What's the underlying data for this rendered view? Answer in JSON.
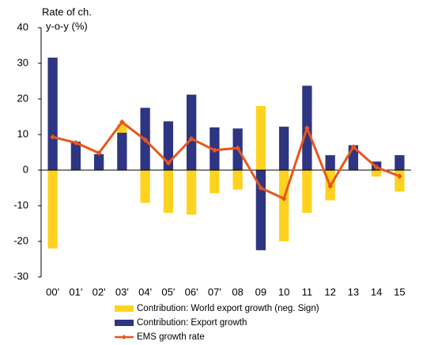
{
  "chart_data": {
    "type": "bar",
    "y_label_lines": [
      "Rate of ch.",
      "y-o-y (%)"
    ],
    "categories": [
      "00'",
      "01'",
      "02'",
      "03'",
      "04'",
      "05'",
      "06'",
      "07'",
      "08",
      "09",
      "10",
      "11",
      "12",
      "13",
      "14",
      "15"
    ],
    "series": [
      {
        "name": "Contribution: World export growth (neg. Sign)",
        "color": "#ffd21f",
        "kind": "bar",
        "values": [
          -22,
          0.5,
          0,
          13,
          -9.2,
          -12,
          -12.5,
          -6.5,
          -5.5,
          18,
          -20,
          -12,
          -8.5,
          6,
          -1.8,
          -6
        ]
      },
      {
        "name": "Contribution: Export growth",
        "color": "#2e3582",
        "kind": "bar",
        "values": [
          31.6,
          8,
          4.5,
          10.5,
          17.5,
          13.7,
          21.2,
          12,
          11.7,
          -22.5,
          12.2,
          23.7,
          4.2,
          7,
          2.4,
          4.2
        ]
      },
      {
        "name": "EMS growth rate",
        "color": "#e8561c",
        "kind": "line",
        "values": [
          9.3,
          7.7,
          4.8,
          13.5,
          8.5,
          2,
          8.8,
          5.6,
          6.2,
          -5,
          -8,
          11.8,
          -4.5,
          6.5,
          0.8,
          -1.7
        ]
      }
    ],
    "ylim": [
      -30,
      40
    ],
    "yticks": [
      -30,
      -20,
      -10,
      0,
      10,
      20,
      30,
      40
    ]
  }
}
